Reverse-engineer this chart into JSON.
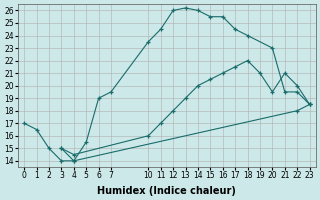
{
  "xlabel": "Humidex (Indice chaleur)",
  "bg_color": "#cce8e8",
  "line_color": "#1a6b6b",
  "grid_color": "#b0b0b0",
  "xlim": [
    -0.5,
    23.5
  ],
  "ylim": [
    13.5,
    26.5
  ],
  "ytick_values": [
    14,
    15,
    16,
    17,
    18,
    19,
    20,
    21,
    22,
    23,
    24,
    25,
    26
  ],
  "xtick_positions": [
    0,
    1,
    2,
    3,
    4,
    5,
    6,
    7,
    10,
    11,
    12,
    13,
    14,
    15,
    16,
    17,
    18,
    19,
    20,
    21,
    22,
    23
  ],
  "xtick_labels": [
    "0",
    "1",
    "2",
    "3",
    "4",
    "5",
    "6",
    "7",
    "10",
    "11",
    "12",
    "13",
    "14",
    "15",
    "16",
    "17",
    "18",
    "19",
    "20",
    "21",
    "22",
    "23"
  ],
  "series": [
    {
      "x": [
        0,
        1,
        2,
        3,
        4,
        5,
        6,
        7,
        10,
        11,
        12,
        13,
        14,
        15,
        16,
        17,
        18,
        20,
        21,
        22,
        23
      ],
      "y": [
        17,
        16.5,
        15,
        14,
        14,
        15.5,
        19,
        19.5,
        23.5,
        24.5,
        26,
        26.2,
        26,
        25.5,
        25.5,
        24.5,
        24,
        23,
        19.5,
        19.5,
        18.5
      ]
    },
    {
      "x": [
        3,
        4,
        10,
        11,
        12,
        13,
        14,
        15,
        16,
        17,
        18,
        19,
        20,
        21,
        22,
        23
      ],
      "y": [
        15,
        14.5,
        16,
        17,
        18,
        19,
        20,
        20.5,
        21,
        21.5,
        22,
        21,
        19.5,
        21,
        20,
        18.5
      ]
    },
    {
      "x": [
        3,
        4,
        22,
        23
      ],
      "y": [
        15,
        14,
        18,
        18.5
      ]
    }
  ]
}
